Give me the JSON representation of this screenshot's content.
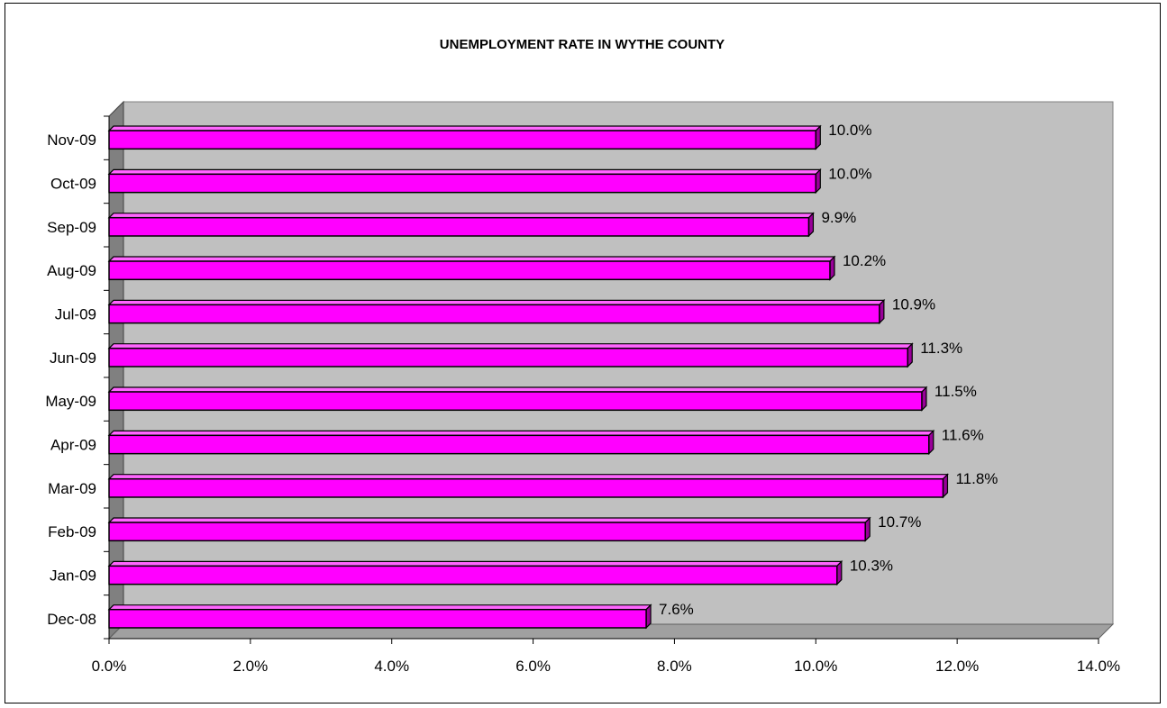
{
  "chart_data": {
    "type": "bar",
    "orientation": "horizontal",
    "title": "UNEMPLOYMENT RATE IN WYTHE COUNTY",
    "xlabel": "",
    "ylabel": "",
    "categories": [
      "Dec-08",
      "Jan-09",
      "Feb-09",
      "Mar-09",
      "Apr-09",
      "May-09",
      "Jun-09",
      "Jul-09",
      "Aug-09",
      "Sep-09",
      "Oct-09",
      "Nov-09"
    ],
    "values": [
      7.6,
      10.3,
      10.7,
      11.8,
      11.6,
      11.5,
      11.3,
      10.9,
      10.2,
      9.9,
      10.0,
      10.0
    ],
    "data_labels": [
      "7.6%",
      "10.3%",
      "10.7%",
      "11.8%",
      "11.6%",
      "11.5%",
      "11.3%",
      "10.9%",
      "10.2%",
      "9.9%",
      "10.0%",
      "10.0%"
    ],
    "xlim": [
      0,
      14
    ],
    "x_ticks": [
      "0.0%",
      "2.0%",
      "4.0%",
      "6.0%",
      "8.0%",
      "10.0%",
      "12.0%",
      "14.0%"
    ],
    "grid": false,
    "legend": "none",
    "style": "3d",
    "colors": {
      "bar_front": "#FF00FF",
      "bar_top": "#FF66FF",
      "bar_side": "#990099",
      "plot_back": "#C0C0C0",
      "plot_wall": "#808080",
      "plot_floor": "#A0A0A0"
    }
  }
}
